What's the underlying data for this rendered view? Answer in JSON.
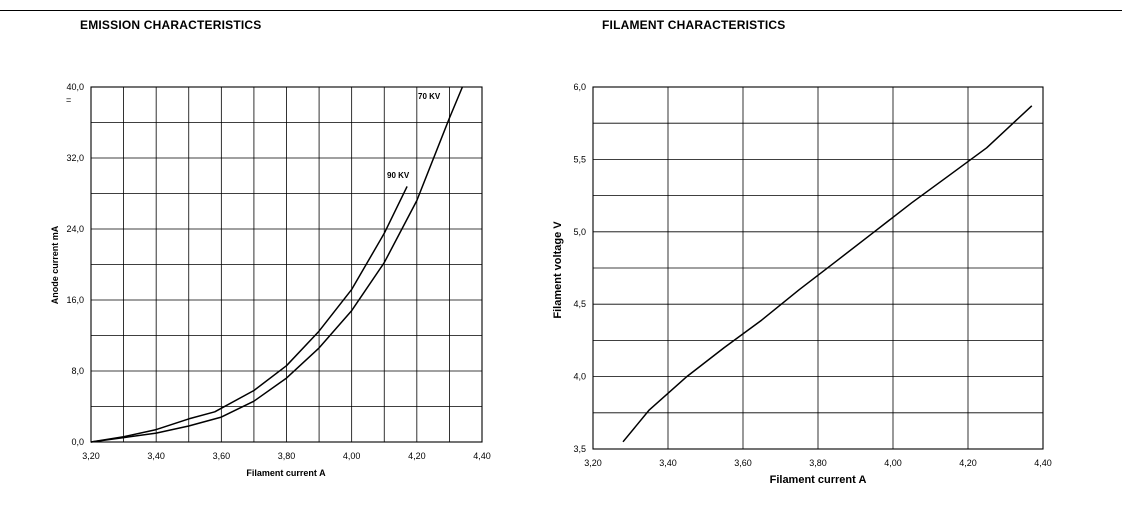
{
  "chart_data": [
    {
      "type": "line",
      "title": "EMISSION CHARACTERISTICS",
      "xlabel": "Filament current A",
      "ylabel": "Anode current mA",
      "xlim": [
        3.2,
        4.4
      ],
      "ylim": [
        0,
        40
      ],
      "x_ticks": [
        "3,20",
        "3,40",
        "3,60",
        "3,80",
        "4,00",
        "4,20",
        "4,40"
      ],
      "y_ticks": [
        "0,0",
        "8,0",
        "16,0",
        "24,0",
        "32,0",
        "40,0"
      ],
      "y_mark": "=",
      "grid": true,
      "series": [
        {
          "name": "90 KV",
          "x": [
            3.2,
            3.3,
            3.4,
            3.5,
            3.58,
            3.7,
            3.8,
            3.9,
            4.0,
            4.1,
            4.17
          ],
          "y": [
            0.0,
            0.6,
            1.4,
            2.6,
            3.4,
            5.8,
            8.6,
            12.5,
            17.2,
            23.5,
            28.8
          ]
        },
        {
          "name": "70 KV",
          "x": [
            3.2,
            3.3,
            3.4,
            3.5,
            3.6,
            3.7,
            3.8,
            3.9,
            4.0,
            4.1,
            4.2,
            4.3,
            4.34
          ],
          "y": [
            0.0,
            0.5,
            1.0,
            1.8,
            2.8,
            4.6,
            7.2,
            10.6,
            14.8,
            20.2,
            27.2,
            36.5,
            40.0
          ]
        }
      ]
    },
    {
      "type": "line",
      "title": "FILAMENT CHARACTERISTICS",
      "xlabel": "Filament current A",
      "ylabel": "Filament voltage  V",
      "xlim": [
        3.2,
        4.4
      ],
      "ylim": [
        3.5,
        6.0
      ],
      "x_ticks": [
        "3,20",
        "3,40",
        "3,60",
        "3,80",
        "4,00",
        "4,20",
        "4,40"
      ],
      "y_ticks": [
        "3,5",
        "4,0",
        "4,5",
        "5,0",
        "5,5",
        "6,0"
      ],
      "grid": true,
      "series": [
        {
          "x": [
            3.28,
            3.35,
            3.45,
            3.55,
            3.65,
            3.75,
            3.85,
            3.95,
            4.05,
            4.15,
            4.25,
            4.37
          ],
          "y": [
            3.55,
            3.77,
            4.0,
            4.2,
            4.39,
            4.6,
            4.8,
            5.0,
            5.2,
            5.39,
            5.58,
            5.87
          ]
        }
      ]
    }
  ]
}
